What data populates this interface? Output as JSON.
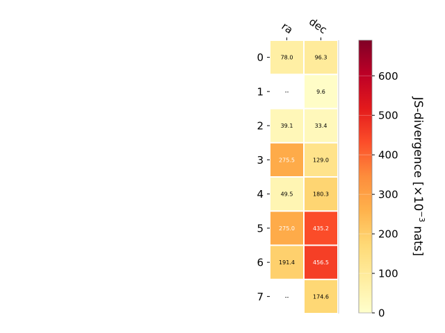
{
  "chart_data": {
    "type": "heatmap",
    "columns": [
      "ra",
      "dec"
    ],
    "rows": [
      "0",
      "1",
      "2",
      "3",
      "4",
      "5",
      "6",
      "7"
    ],
    "values": [
      [
        78.0,
        96.3
      ],
      [
        null,
        9.6
      ],
      [
        39.1,
        33.4
      ],
      [
        275.5,
        129.0
      ],
      [
        49.5,
        180.3
      ],
      [
        275.0,
        435.2
      ],
      [
        191.4,
        456.5
      ],
      [
        null,
        174.6
      ]
    ],
    "cell_labels": [
      [
        "78.0",
        "96.3"
      ],
      [
        "--",
        "9.6"
      ],
      [
        "39.1",
        "33.4"
      ],
      [
        "275.5",
        "129.0"
      ],
      [
        "49.5",
        "180.3"
      ],
      [
        "275.0",
        "435.2"
      ],
      [
        "191.4",
        "456.5"
      ],
      [
        "--",
        "174.6"
      ]
    ],
    "colorbar": {
      "title_main": "JS-divergence [×10",
      "title_exp": "−3",
      "title_end": " nats]",
      "ticks": [
        0,
        100,
        200,
        300,
        400,
        500,
        600
      ],
      "tick_labels": [
        "0",
        "100",
        "200",
        "300",
        "400",
        "500",
        "600"
      ],
      "range": [
        0,
        690
      ],
      "colormap": "YlOrRd"
    },
    "grid": false
  }
}
